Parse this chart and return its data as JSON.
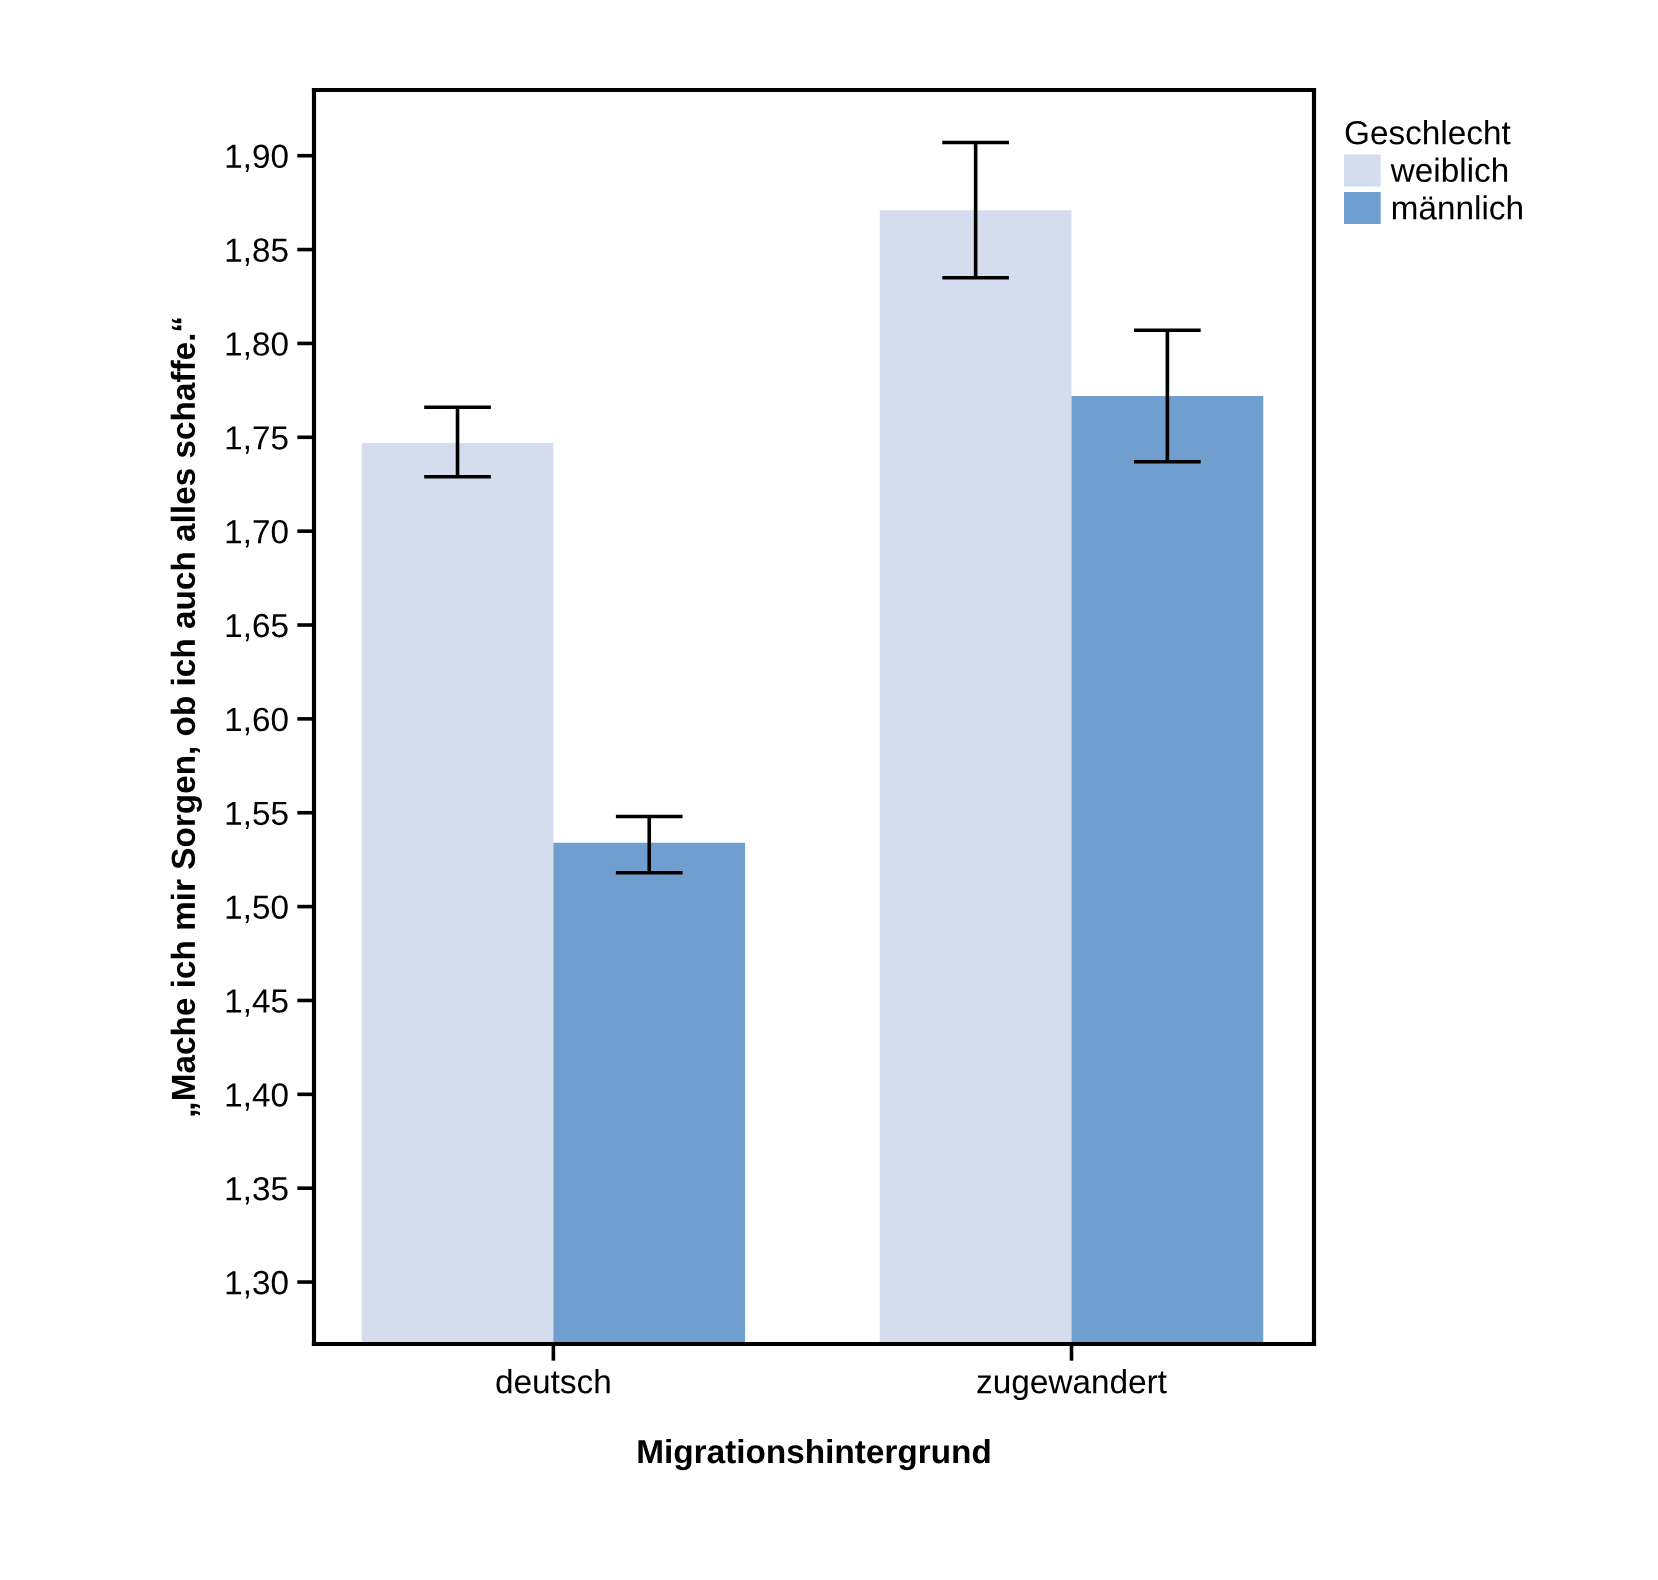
{
  "chart_data": {
    "type": "bar",
    "xlabel": "Migrationshintergrund",
    "ylabel": "„Mache ich mir Sorgen, ob ich auch alles schaffe.“",
    "legend_title": "Geschlecht",
    "legend": "top right",
    "categories": [
      "deutsch",
      "zugewandert"
    ],
    "series": [
      {
        "name": "weiblich",
        "color": "#d4ddee",
        "values": [
          1.747,
          1.871
        ],
        "errors": [
          [
            1.729,
            1.766
          ],
          [
            1.835,
            1.907
          ]
        ]
      },
      {
        "name": "männlich",
        "color": "#6f9ecf",
        "values": [
          1.534,
          1.772
        ],
        "errors": [
          [
            1.518,
            1.548
          ],
          [
            1.737,
            1.807
          ]
        ]
      }
    ],
    "ylim": [
      1.267,
      1.935
    ],
    "yticks": [
      {
        "value": 1.3,
        "label": "1,30"
      },
      {
        "value": 1.35,
        "label": "1,35"
      },
      {
        "value": 1.4,
        "label": "1,40"
      },
      {
        "value": 1.45,
        "label": "1,45"
      },
      {
        "value": 1.5,
        "label": "1,50"
      },
      {
        "value": 1.55,
        "label": "1,55"
      },
      {
        "value": 1.6,
        "label": "1,60"
      },
      {
        "value": 1.65,
        "label": "1,65"
      },
      {
        "value": 1.7,
        "label": "1,70"
      },
      {
        "value": 1.75,
        "label": "1,75"
      },
      {
        "value": 1.8,
        "label": "1,80"
      },
      {
        "value": 1.85,
        "label": "1,85"
      },
      {
        "value": 1.9,
        "label": "1,90"
      }
    ],
    "grid": false
  }
}
